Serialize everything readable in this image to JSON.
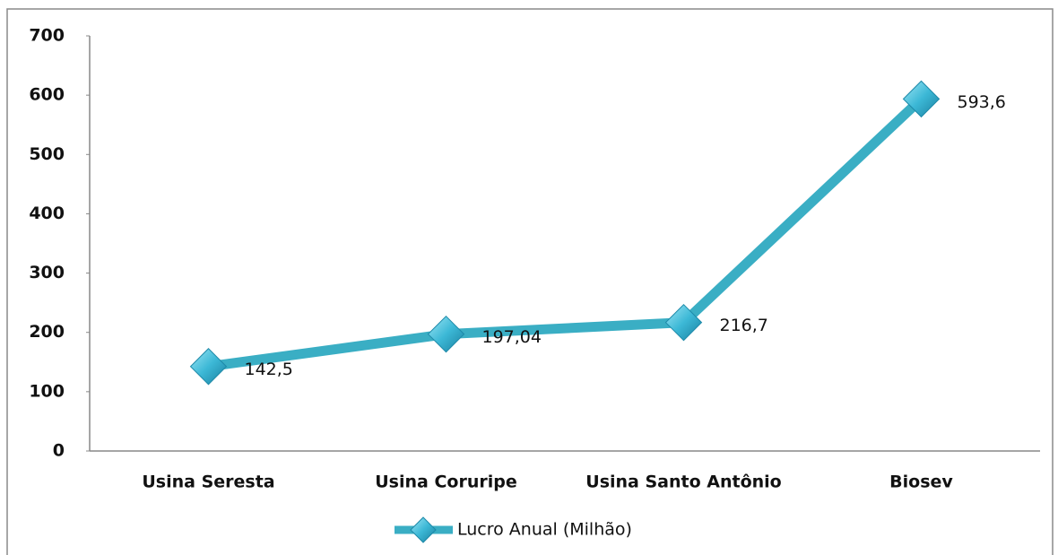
{
  "chart_data": {
    "type": "line",
    "categories": [
      "Usina Seresta",
      "Usina Coruripe",
      "Usina Santo Antônio",
      "Biosev"
    ],
    "series": [
      {
        "name": "Lucro Anual (Milhão)",
        "color": "#3aaec4",
        "values": [
          142.5,
          197.04,
          216.7,
          593.6
        ],
        "value_labels": [
          "142,5",
          "197,04",
          "216,7",
          "593,6"
        ]
      }
    ],
    "ylim": [
      0,
      700
    ],
    "yticks": [
      0,
      100,
      200,
      300,
      400,
      500,
      600,
      700
    ],
    "legend": "bottom"
  }
}
